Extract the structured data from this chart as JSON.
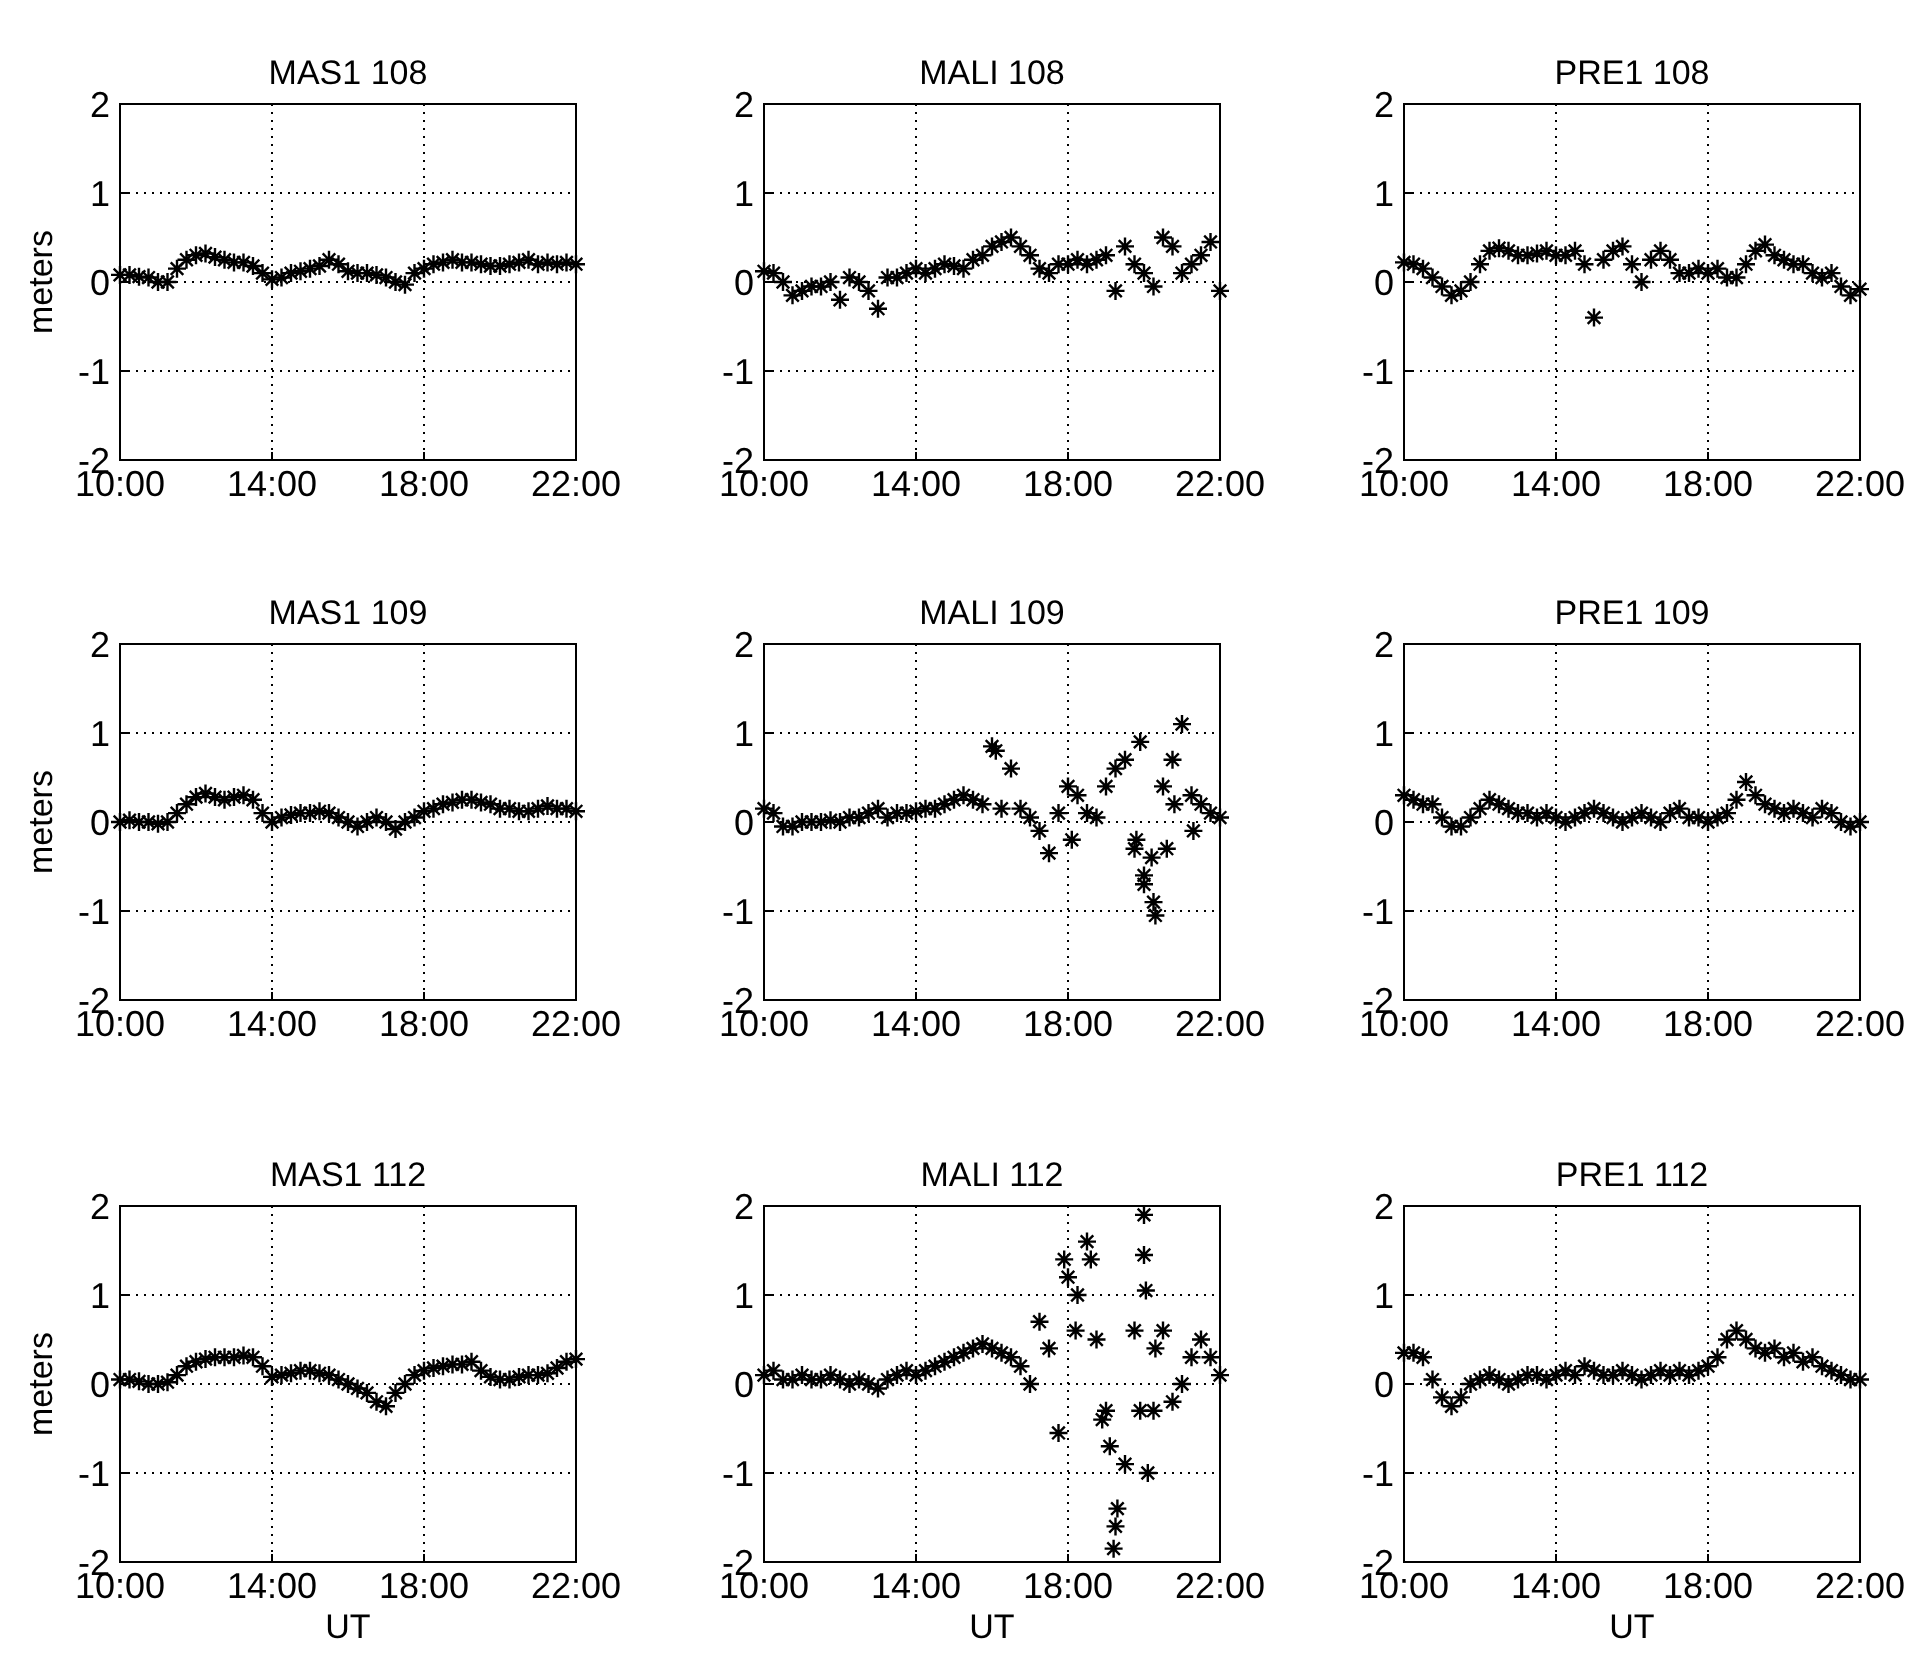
{
  "chart_data": [
    {
      "type": "scatter",
      "title": "MAS1  108",
      "ylabel": "meters",
      "xlim": [
        10,
        22
      ],
      "xticks": [
        {
          "value": 10,
          "label": "10:00"
        },
        {
          "value": 14,
          "label": "14:00"
        },
        {
          "value": 18,
          "label": "18:00"
        },
        {
          "value": 22,
          "label": "22:00"
        }
      ],
      "ylim": [
        -2,
        2
      ],
      "yticks": [
        -2,
        -1,
        0,
        1,
        2
      ],
      "grid": true,
      "marker": "cross",
      "x": [
        10,
        10.25,
        10.5,
        10.75,
        11,
        11.25,
        11.5,
        11.75,
        12,
        12.25,
        12.5,
        12.75,
        13,
        13.25,
        13.5,
        13.75,
        14,
        14.25,
        14.5,
        14.75,
        15,
        15.25,
        15.5,
        15.75,
        16,
        16.25,
        16.5,
        16.75,
        17,
        17.25,
        17.5,
        17.75,
        18,
        18.25,
        18.5,
        18.75,
        19,
        19.25,
        19.5,
        19.75,
        20,
        20.25,
        20.5,
        20.75,
        21,
        21.25,
        21.5,
        21.75,
        22
      ],
      "series": [
        {
          "color": "#000000",
          "values": [
            0.08,
            0.08,
            0.06,
            0.05,
            0.0,
            0.0,
            0.15,
            0.25,
            0.3,
            0.32,
            0.28,
            0.25,
            0.22,
            0.22,
            0.18,
            0.1,
            0.03,
            0.05,
            0.1,
            0.12,
            0.15,
            0.18,
            0.25,
            0.2,
            0.12,
            0.1,
            0.1,
            0.08,
            0.05,
            0.0,
            -0.03,
            0.1,
            0.15,
            0.2,
            0.22,
            0.25,
            0.22,
            0.22,
            0.2,
            0.18,
            0.18,
            0.2,
            0.22,
            0.25,
            0.2,
            0.22,
            0.2,
            0.22,
            0.2
          ]
        }
      ]
    },
    {
      "type": "scatter",
      "title": "MALI  108",
      "xlim": [
        10,
        22
      ],
      "xticks": [
        {
          "value": 10,
          "label": "10:00"
        },
        {
          "value": 14,
          "label": "14:00"
        },
        {
          "value": 18,
          "label": "18:00"
        },
        {
          "value": 22,
          "label": "22:00"
        }
      ],
      "ylim": [
        -2,
        2
      ],
      "yticks": [
        -2,
        -1,
        0,
        1,
        2
      ],
      "grid": true,
      "marker": "cross",
      "x": [
        10,
        10.25,
        10.5,
        10.75,
        11,
        11.25,
        11.5,
        11.75,
        12,
        12.25,
        12.5,
        12.75,
        13,
        13.25,
        13.5,
        13.75,
        14,
        14.25,
        14.5,
        14.75,
        15,
        15.25,
        15.5,
        15.75,
        16,
        16.25,
        16.5,
        16.75,
        17,
        17.25,
        17.5,
        17.75,
        18,
        18.25,
        18.5,
        18.75,
        19,
        19.25,
        19.5,
        19.75,
        20,
        20.25,
        20.5,
        20.75,
        21,
        21.25,
        21.5,
        21.75,
        22
      ],
      "series": [
        {
          "color": "#000000",
          "values": [
            0.12,
            0.1,
            0.0,
            -0.15,
            -0.1,
            -0.05,
            -0.05,
            0.0,
            -0.2,
            0.05,
            0.0,
            -0.1,
            -0.3,
            0.05,
            0.05,
            0.1,
            0.15,
            0.1,
            0.15,
            0.2,
            0.18,
            0.15,
            0.25,
            0.3,
            0.4,
            0.45,
            0.5,
            0.4,
            0.3,
            0.15,
            0.1,
            0.2,
            0.2,
            0.25,
            0.2,
            0.25,
            0.3,
            -0.1,
            0.4,
            0.2,
            0.1,
            -0.05,
            0.5,
            0.4,
            0.1,
            0.2,
            0.3,
            0.45,
            -0.1
          ]
        }
      ]
    },
    {
      "type": "scatter",
      "title": "PRE1  108",
      "xlim": [
        10,
        22
      ],
      "xticks": [
        {
          "value": 10,
          "label": "10:00"
        },
        {
          "value": 14,
          "label": "14:00"
        },
        {
          "value": 18,
          "label": "18:00"
        },
        {
          "value": 22,
          "label": "22:00"
        }
      ],
      "ylim": [
        -2,
        2
      ],
      "yticks": [
        -2,
        -1,
        0,
        1,
        2
      ],
      "grid": true,
      "marker": "cross",
      "x": [
        10,
        10.25,
        10.5,
        10.75,
        11,
        11.25,
        11.5,
        11.75,
        12,
        12.25,
        12.5,
        12.75,
        13,
        13.25,
        13.5,
        13.75,
        14,
        14.25,
        14.5,
        14.75,
        15,
        15.25,
        15.5,
        15.75,
        16,
        16.25,
        16.5,
        16.75,
        17,
        17.25,
        17.5,
        17.75,
        18,
        18.25,
        18.5,
        18.75,
        19,
        19.25,
        19.5,
        19.75,
        20,
        20.25,
        20.5,
        20.75,
        21,
        21.25,
        21.5,
        21.75,
        22
      ],
      "series": [
        {
          "color": "#000000",
          "values": [
            0.22,
            0.2,
            0.15,
            0.05,
            -0.05,
            -0.15,
            -0.1,
            0.0,
            0.2,
            0.35,
            0.38,
            0.35,
            0.3,
            0.3,
            0.32,
            0.35,
            0.3,
            0.3,
            0.35,
            0.2,
            -0.4,
            0.25,
            0.35,
            0.4,
            0.2,
            0.0,
            0.25,
            0.35,
            0.25,
            0.1,
            0.1,
            0.15,
            0.1,
            0.15,
            0.05,
            0.05,
            0.2,
            0.35,
            0.42,
            0.3,
            0.25,
            0.2,
            0.2,
            0.1,
            0.05,
            0.1,
            -0.05,
            -0.15,
            -0.08
          ]
        }
      ]
    },
    {
      "type": "scatter",
      "title": "MAS1  109",
      "ylabel": "meters",
      "xlim": [
        10,
        22
      ],
      "xticks": [
        {
          "value": 10,
          "label": "10:00"
        },
        {
          "value": 14,
          "label": "14:00"
        },
        {
          "value": 18,
          "label": "18:00"
        },
        {
          "value": 22,
          "label": "22:00"
        }
      ],
      "ylim": [
        -2,
        2
      ],
      "yticks": [
        -2,
        -1,
        0,
        1,
        2
      ],
      "grid": true,
      "marker": "cross",
      "x": [
        10,
        10.25,
        10.5,
        10.75,
        11,
        11.25,
        11.5,
        11.75,
        12,
        12.25,
        12.5,
        12.75,
        13,
        13.25,
        13.5,
        13.75,
        14,
        14.25,
        14.5,
        14.75,
        15,
        15.25,
        15.5,
        15.75,
        16,
        16.25,
        16.5,
        16.75,
        17,
        17.25,
        17.5,
        17.75,
        18,
        18.25,
        18.5,
        18.75,
        19,
        19.25,
        19.5,
        19.75,
        20,
        20.25,
        20.5,
        20.75,
        21,
        21.25,
        21.5,
        21.75,
        22
      ],
      "series": [
        {
          "color": "#000000",
          "values": [
            0.0,
            0.02,
            0.0,
            0.0,
            -0.02,
            0.0,
            0.1,
            0.2,
            0.28,
            0.32,
            0.28,
            0.25,
            0.28,
            0.3,
            0.25,
            0.1,
            0.0,
            0.05,
            0.08,
            0.1,
            0.1,
            0.12,
            0.1,
            0.05,
            0.0,
            -0.05,
            0.0,
            0.05,
            0.0,
            -0.08,
            0.0,
            0.05,
            0.12,
            0.15,
            0.2,
            0.22,
            0.25,
            0.25,
            0.22,
            0.2,
            0.15,
            0.15,
            0.12,
            0.12,
            0.15,
            0.18,
            0.15,
            0.15,
            0.12
          ]
        }
      ]
    },
    {
      "type": "scatter",
      "title": "MALI  109",
      "xlim": [
        10,
        22
      ],
      "xticks": [
        {
          "value": 10,
          "label": "10:00"
        },
        {
          "value": 14,
          "label": "14:00"
        },
        {
          "value": 18,
          "label": "18:00"
        },
        {
          "value": 22,
          "label": "22:00"
        }
      ],
      "ylim": [
        -2,
        2
      ],
      "yticks": [
        -2,
        -1,
        0,
        1,
        2
      ],
      "grid": true,
      "marker": "cross",
      "x": [
        10,
        10.25,
        10.5,
        10.75,
        11,
        11.25,
        11.5,
        11.75,
        12,
        12.25,
        12.5,
        12.75,
        13,
        13.25,
        13.5,
        13.75,
        14,
        14.25,
        14.5,
        14.75,
        15,
        15.25,
        15.5,
        15.75,
        16,
        16.25,
        16.5,
        16.75,
        17,
        17.25,
        17.5,
        17.75,
        18,
        18.25,
        18.5,
        18.75,
        19,
        19.25,
        19.5,
        19.75,
        20,
        20.25,
        20.5,
        20.75,
        21,
        21.25,
        21.5,
        21.75,
        22,
        16.1,
        18.1,
        19.9,
        20.0,
        20.3,
        19.8,
        20.2,
        20.6,
        20.8,
        21.3
      ],
      "series": [
        {
          "color": "#000000",
          "values": [
            0.15,
            0.1,
            -0.05,
            -0.05,
            0.0,
            0.0,
            0.0,
            0.02,
            0.0,
            0.05,
            0.05,
            0.1,
            0.15,
            0.05,
            0.1,
            0.1,
            0.12,
            0.15,
            0.15,
            0.2,
            0.25,
            0.3,
            0.25,
            0.2,
            0.85,
            0.15,
            0.6,
            0.15,
            0.05,
            -0.1,
            -0.35,
            0.1,
            0.4,
            0.3,
            0.1,
            0.05,
            0.4,
            0.6,
            0.7,
            -0.3,
            -0.6,
            -0.9,
            0.4,
            0.7,
            1.1,
            0.3,
            0.2,
            0.1,
            0.05,
            0.8,
            -0.2,
            0.9,
            -0.7,
            -1.05,
            -0.2,
            -0.4,
            -0.3,
            0.2,
            -0.1
          ]
        }
      ]
    },
    {
      "type": "scatter",
      "title": "PRE1  109",
      "xlim": [
        10,
        22
      ],
      "xticks": [
        {
          "value": 10,
          "label": "10:00"
        },
        {
          "value": 14,
          "label": "14:00"
        },
        {
          "value": 18,
          "label": "18:00"
        },
        {
          "value": 22,
          "label": "22:00"
        }
      ],
      "ylim": [
        -2,
        2
      ],
      "yticks": [
        -2,
        -1,
        0,
        1,
        2
      ],
      "grid": true,
      "marker": "cross",
      "x": [
        10,
        10.25,
        10.5,
        10.75,
        11,
        11.25,
        11.5,
        11.75,
        12,
        12.25,
        12.5,
        12.75,
        13,
        13.25,
        13.5,
        13.75,
        14,
        14.25,
        14.5,
        14.75,
        15,
        15.25,
        15.5,
        15.75,
        16,
        16.25,
        16.5,
        16.75,
        17,
        17.25,
        17.5,
        17.75,
        18,
        18.25,
        18.5,
        18.75,
        19,
        19.25,
        19.5,
        19.75,
        20,
        20.25,
        20.5,
        20.75,
        21,
        21.25,
        21.5,
        21.75,
        22
      ],
      "series": [
        {
          "color": "#000000",
          "values": [
            0.3,
            0.25,
            0.2,
            0.2,
            0.05,
            -0.05,
            -0.05,
            0.05,
            0.15,
            0.25,
            0.2,
            0.15,
            0.1,
            0.1,
            0.05,
            0.1,
            0.05,
            0.0,
            0.05,
            0.1,
            0.15,
            0.1,
            0.05,
            0.0,
            0.05,
            0.1,
            0.05,
            0.0,
            0.1,
            0.15,
            0.05,
            0.05,
            0.0,
            0.05,
            0.1,
            0.25,
            0.45,
            0.3,
            0.2,
            0.15,
            0.1,
            0.15,
            0.1,
            0.05,
            0.15,
            0.1,
            0.0,
            -0.05,
            0.0
          ]
        }
      ]
    },
    {
      "type": "scatter",
      "title": "MAS1  112",
      "ylabel": "meters",
      "xlabel": "UT",
      "xlim": [
        10,
        22
      ],
      "xticks": [
        {
          "value": 10,
          "label": "10:00"
        },
        {
          "value": 14,
          "label": "14:00"
        },
        {
          "value": 18,
          "label": "18:00"
        },
        {
          "value": 22,
          "label": "22:00"
        }
      ],
      "ylim": [
        -2,
        2
      ],
      "yticks": [
        -2,
        -1,
        0,
        1,
        2
      ],
      "grid": true,
      "marker": "cross",
      "x": [
        10,
        10.25,
        10.5,
        10.75,
        11,
        11.25,
        11.5,
        11.75,
        12,
        12.25,
        12.5,
        12.75,
        13,
        13.25,
        13.5,
        13.75,
        14,
        14.25,
        14.5,
        14.75,
        15,
        15.25,
        15.5,
        15.75,
        16,
        16.25,
        16.5,
        16.75,
        17,
        17.25,
        17.5,
        17.75,
        18,
        18.25,
        18.5,
        18.75,
        19,
        19.25,
        19.5,
        19.75,
        20,
        20.25,
        20.5,
        20.75,
        21,
        21.25,
        21.5,
        21.75,
        22
      ],
      "series": [
        {
          "color": "#000000",
          "values": [
            0.05,
            0.05,
            0.03,
            0.0,
            0.0,
            0.02,
            0.1,
            0.2,
            0.25,
            0.28,
            0.3,
            0.3,
            0.3,
            0.32,
            0.3,
            0.2,
            0.08,
            0.1,
            0.12,
            0.15,
            0.15,
            0.12,
            0.1,
            0.05,
            0.0,
            -0.05,
            -0.1,
            -0.2,
            -0.25,
            -0.1,
            0.0,
            0.1,
            0.15,
            0.18,
            0.2,
            0.22,
            0.22,
            0.25,
            0.15,
            0.08,
            0.05,
            0.05,
            0.08,
            0.1,
            0.1,
            0.12,
            0.18,
            0.25,
            0.28
          ]
        }
      ]
    },
    {
      "type": "scatter",
      "title": "MALI  112",
      "xlabel": "UT",
      "xlim": [
        10,
        22
      ],
      "xticks": [
        {
          "value": 10,
          "label": "10:00"
        },
        {
          "value": 14,
          "label": "14:00"
        },
        {
          "value": 18,
          "label": "18:00"
        },
        {
          "value": 22,
          "label": "22:00"
        }
      ],
      "ylim": [
        -2,
        2
      ],
      "yticks": [
        -2,
        -1,
        0,
        1,
        2
      ],
      "grid": true,
      "marker": "cross",
      "x": [
        10,
        10.25,
        10.5,
        10.75,
        11,
        11.25,
        11.5,
        11.75,
        12,
        12.25,
        12.5,
        12.75,
        13,
        13.25,
        13.5,
        13.75,
        14,
        14.25,
        14.5,
        14.75,
        15,
        15.25,
        15.5,
        15.75,
        16,
        16.25,
        16.5,
        16.75,
        17,
        17.25,
        17.5,
        17.75,
        18,
        18.25,
        18.5,
        18.75,
        19,
        19.25,
        19.5,
        19.75,
        20,
        20.25,
        20.5,
        20.75,
        21,
        21.25,
        21.5,
        21.75,
        22,
        17.9,
        18.6,
        19.2,
        19.3,
        20.0,
        20.05,
        19.9,
        20.1,
        20.3,
        18.9,
        19.1,
        18.2
      ],
      "series": [
        {
          "color": "#000000",
          "values": [
            0.1,
            0.15,
            0.05,
            0.05,
            0.1,
            0.05,
            0.05,
            0.1,
            0.05,
            0.0,
            0.05,
            0.0,
            -0.05,
            0.05,
            0.1,
            0.15,
            0.1,
            0.15,
            0.2,
            0.25,
            0.3,
            0.35,
            0.4,
            0.45,
            0.4,
            0.35,
            0.3,
            0.2,
            0.0,
            0.7,
            0.4,
            -0.55,
            1.2,
            1.0,
            1.6,
            0.5,
            -0.3,
            -1.6,
            -0.9,
            0.6,
            1.9,
            -0.3,
            0.6,
            -0.2,
            0.0,
            0.3,
            0.5,
            0.3,
            0.1,
            1.4,
            1.4,
            -1.85,
            -1.4,
            1.45,
            1.05,
            -0.3,
            -1.0,
            0.4,
            -0.4,
            -0.7,
            0.6
          ]
        }
      ]
    },
    {
      "type": "scatter",
      "title": "PRE1  112",
      "xlabel": "UT",
      "xlim": [
        10,
        22
      ],
      "xticks": [
        {
          "value": 10,
          "label": "10:00"
        },
        {
          "value": 14,
          "label": "14:00"
        },
        {
          "value": 18,
          "label": "18:00"
        },
        {
          "value": 22,
          "label": "22:00"
        }
      ],
      "ylim": [
        -2,
        2
      ],
      "yticks": [
        -2,
        -1,
        0,
        1,
        2
      ],
      "grid": true,
      "marker": "cross",
      "x": [
        10,
        10.25,
        10.5,
        10.75,
        11,
        11.25,
        11.5,
        11.75,
        12,
        12.25,
        12.5,
        12.75,
        13,
        13.25,
        13.5,
        13.75,
        14,
        14.25,
        14.5,
        14.75,
        15,
        15.25,
        15.5,
        15.75,
        16,
        16.25,
        16.5,
        16.75,
        17,
        17.25,
        17.5,
        17.75,
        18,
        18.25,
        18.5,
        18.75,
        19,
        19.25,
        19.5,
        19.75,
        20,
        20.25,
        20.5,
        20.75,
        21,
        21.25,
        21.5,
        21.75,
        22
      ],
      "series": [
        {
          "color": "#000000",
          "values": [
            0.35,
            0.35,
            0.3,
            0.05,
            -0.15,
            -0.25,
            -0.15,
            0.0,
            0.05,
            0.1,
            0.05,
            0.0,
            0.05,
            0.1,
            0.1,
            0.05,
            0.1,
            0.15,
            0.1,
            0.2,
            0.15,
            0.1,
            0.1,
            0.15,
            0.1,
            0.05,
            0.1,
            0.15,
            0.1,
            0.15,
            0.1,
            0.15,
            0.2,
            0.3,
            0.5,
            0.6,
            0.5,
            0.4,
            0.35,
            0.4,
            0.3,
            0.35,
            0.25,
            0.3,
            0.2,
            0.15,
            0.1,
            0.05,
            0.05
          ]
        }
      ]
    }
  ]
}
